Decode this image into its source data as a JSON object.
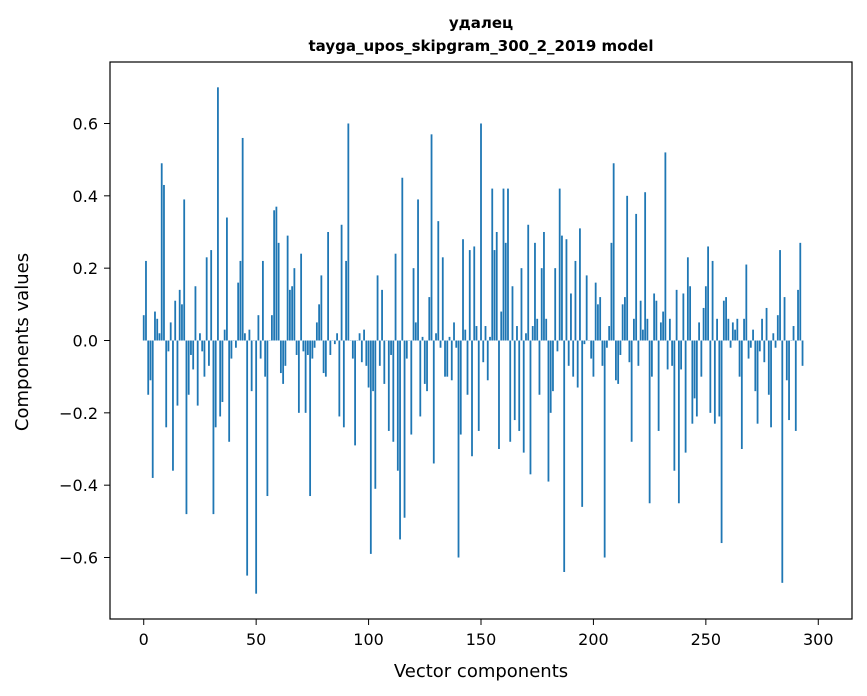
{
  "chart_data": {
    "type": "bar",
    "title": "удалец",
    "subtitle": "tayga_upos_skipgram_300_2_2019 model",
    "xlabel": "Vector components",
    "ylabel": "Components values",
    "xlim": [
      -15,
      315
    ],
    "ylim": [
      -0.77,
      0.77
    ],
    "xticks": [
      0,
      50,
      100,
      150,
      200,
      250,
      300
    ],
    "xtick_labels": [
      "0",
      "50",
      "100",
      "150",
      "200",
      "250",
      "300"
    ],
    "yticks": [
      -0.6,
      -0.4,
      -0.2,
      0.0,
      0.2,
      0.4,
      0.6
    ],
    "ytick_labels": [
      "−0.6",
      "−0.4",
      "−0.2",
      "0.0",
      "0.2",
      "0.4",
      "0.6"
    ],
    "grid": false,
    "bar_color": "#1f77b4",
    "values": [
      0.07,
      0.22,
      -0.15,
      -0.11,
      -0.38,
      0.08,
      0.06,
      0.02,
      0.49,
      0.43,
      -0.24,
      -0.03,
      0.05,
      -0.36,
      0.11,
      -0.18,
      0.14,
      0.1,
      0.39,
      -0.48,
      -0.15,
      -0.04,
      -0.08,
      0.15,
      -0.18,
      0.02,
      -0.03,
      -0.1,
      0.23,
      -0.07,
      0.25,
      -0.48,
      -0.24,
      0.7,
      -0.21,
      -0.17,
      0.03,
      0.34,
      -0.28,
      -0.05,
      0.0,
      -0.02,
      0.16,
      0.22,
      0.56,
      0.02,
      -0.65,
      0.03,
      -0.14,
      0.0,
      -0.7,
      0.07,
      -0.05,
      0.22,
      -0.1,
      -0.43,
      0.0,
      0.07,
      0.36,
      0.37,
      0.27,
      -0.09,
      -0.12,
      -0.07,
      0.29,
      0.14,
      0.15,
      0.2,
      -0.04,
      -0.2,
      0.24,
      -0.03,
      -0.2,
      -0.04,
      -0.43,
      -0.05,
      -0.02,
      0.05,
      0.1,
      0.18,
      -0.09,
      -0.1,
      0.3,
      -0.04,
      0.0,
      -0.01,
      0.02,
      -0.21,
      0.32,
      -0.24,
      0.22,
      0.6,
      0.0,
      -0.05,
      -0.29,
      0.0,
      0.02,
      -0.06,
      0.03,
      -0.07,
      -0.13,
      -0.59,
      -0.14,
      -0.41,
      0.18,
      -0.07,
      0.14,
      -0.12,
      0.0,
      -0.25,
      -0.04,
      -0.28,
      0.24,
      -0.36,
      -0.55,
      0.45,
      -0.49,
      -0.05,
      0.0,
      -0.26,
      0.2,
      0.05,
      0.39,
      -0.21,
      0.01,
      -0.12,
      -0.14,
      0.12,
      0.57,
      -0.34,
      0.02,
      0.33,
      -0.02,
      0.23,
      -0.1,
      -0.1,
      0.01,
      -0.11,
      0.05,
      -0.02,
      -0.6,
      -0.26,
      0.28,
      0.03,
      -0.15,
      0.25,
      -0.32,
      0.26,
      0.04,
      -0.25,
      0.6,
      -0.06,
      0.04,
      -0.11,
      0.01,
      0.42,
      0.25,
      0.3,
      -0.3,
      0.08,
      0.42,
      0.27,
      0.42,
      -0.28,
      0.15,
      -0.22,
      0.04,
      -0.25,
      0.2,
      -0.31,
      0.02,
      0.32,
      -0.37,
      0.04,
      0.27,
      0.06,
      -0.15,
      0.2,
      0.3,
      0.06,
      -0.39,
      -0.2,
      -0.14,
      0.2,
      -0.03,
      0.42,
      0.29,
      -0.64,
      0.28,
      -0.07,
      0.13,
      -0.1,
      0.22,
      -0.13,
      0.31,
      -0.46,
      -0.01,
      0.18,
      0.0,
      -0.05,
      -0.1,
      0.16,
      0.1,
      0.12,
      -0.07,
      -0.6,
      -0.02,
      0.04,
      0.27,
      0.49,
      -0.11,
      -0.12,
      -0.04,
      0.1,
      0.12,
      0.4,
      -0.06,
      -0.28,
      0.06,
      0.35,
      -0.07,
      0.11,
      0.03,
      0.41,
      0.06,
      -0.45,
      -0.1,
      0.13,
      0.11,
      -0.25,
      0.05,
      0.08,
      0.52,
      -0.08,
      0.06,
      -0.07,
      -0.36,
      0.14,
      -0.45,
      -0.08,
      0.13,
      -0.31,
      0.23,
      0.15,
      -0.23,
      -0.16,
      -0.21,
      0.05,
      -0.1,
      0.09,
      0.15,
      0.26,
      -0.2,
      0.22,
      -0.23,
      0.06,
      -0.21,
      -0.56,
      0.11,
      0.12,
      0.06,
      -0.02,
      0.05,
      0.03,
      0.06,
      -0.1,
      -0.3,
      0.06,
      0.21,
      -0.05,
      -0.02,
      0.03,
      -0.14,
      -0.23,
      -0.03,
      0.06,
      -0.06,
      0.09,
      -0.15,
      -0.24,
      0.02,
      -0.02,
      0.07,
      0.25,
      -0.67,
      0.12,
      -0.11,
      -0.22,
      0.0,
      0.04,
      -0.25,
      0.14,
      0.27,
      -0.07
    ]
  }
}
